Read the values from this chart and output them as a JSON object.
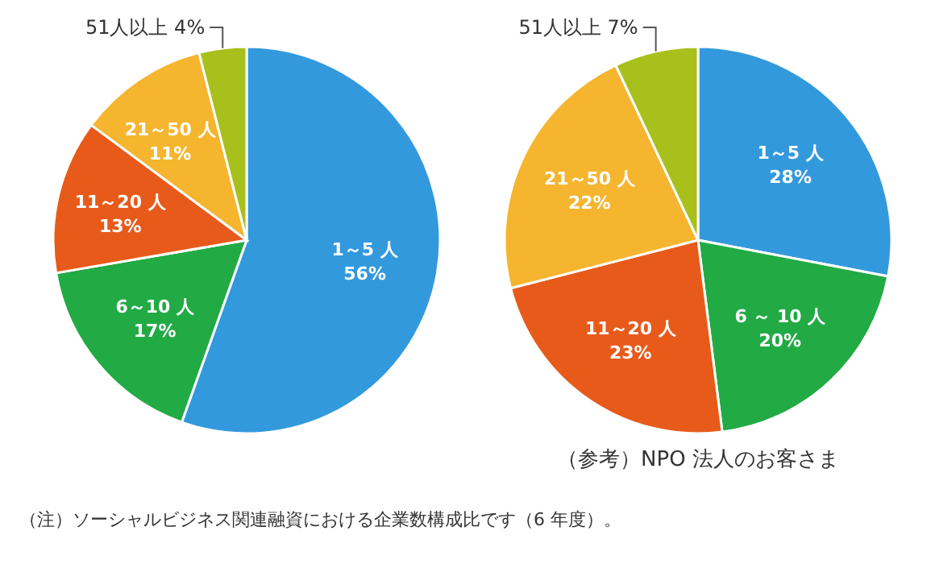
{
  "chart_data": [
    {
      "type": "pie",
      "categories": [
        "1～5 人",
        "6～10 人",
        "11～20 人",
        "21～50 人",
        "51人以上"
      ],
      "values": [
        56,
        17,
        13,
        11,
        4
      ],
      "value_labels": [
        "56%",
        "17%",
        "13%",
        "11%",
        "4%"
      ],
      "colors": [
        "#3399dd",
        "#22aa44",
        "#e85a1a",
        "#f5b52e",
        "#a8c01c"
      ],
      "annotations": [
        "（注）ソーシャルビジネス関連融資における企業数構成比です（6 年度）。"
      ]
    },
    {
      "type": "pie",
      "title": "（参考）NPO 法人のお客さま",
      "categories": [
        "1～5 人",
        "6 ～ 10 人",
        "11～20 人",
        "21～50 人",
        "51人以上"
      ],
      "values": [
        28,
        20,
        23,
        22,
        7
      ],
      "value_labels": [
        "28%",
        "20%",
        "23%",
        "22%",
        "7%"
      ],
      "colors": [
        "#3399dd",
        "#22aa44",
        "#e85a1a",
        "#f5b52e",
        "#a8c01c"
      ]
    }
  ]
}
